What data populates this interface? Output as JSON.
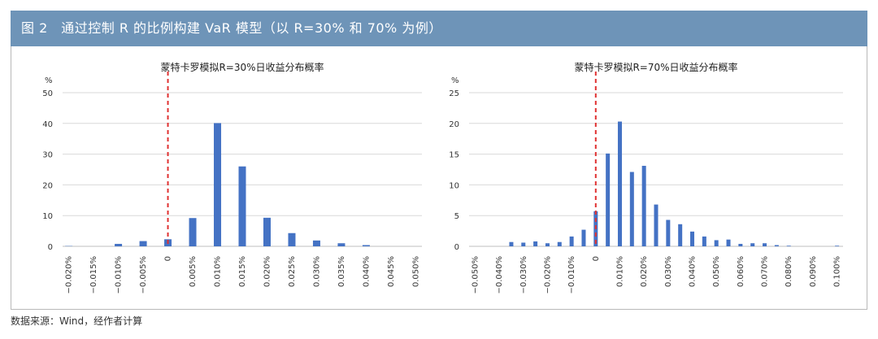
{
  "figure": {
    "title": "图 2　通过控制 R 的比例构建 VaR 模型（以 R=30% 和 70% 为例）",
    "source": "数据来源：Wind，经作者计算"
  },
  "colors": {
    "banner": "#6e94b8",
    "bar": "#4472c4",
    "zero_line": "#e03131",
    "grid": "#d9d9d9"
  },
  "chart_data": [
    {
      "type": "bar",
      "title": "蒙特卡罗模拟R=30%日收益分布概率",
      "ylabel": "%",
      "ylim": [
        0,
        50
      ],
      "yticks": [
        "0",
        "10",
        "20",
        "30",
        "40",
        "50"
      ],
      "grid": true,
      "zero_marker": {
        "style": "dashed",
        "at": "0"
      },
      "categories": [
        "-0.020%",
        "",
        "-0.015%",
        "",
        "-0.010%",
        "",
        "-0.005%",
        "",
        "0",
        "",
        "0.005%",
        "",
        "0.010%",
        "",
        "0.015%",
        "",
        "0.020%",
        "",
        "0.025%",
        "",
        "0.030%",
        "",
        "0.035%",
        "",
        "0.040%",
        "",
        "0.045%",
        "",
        "0.050%"
      ],
      "tick_labels": [
        "−0.020%",
        "−0.015%",
        "−0.010%",
        "−0.005%",
        "0",
        "0.005%",
        "0.010%",
        "0.015%",
        "0.020%",
        "0.025%",
        "0.030%",
        "0.035%",
        "0.040%",
        "0.045%",
        "0.050%"
      ],
      "values": [
        0.1,
        0,
        0,
        0,
        0.8,
        0,
        1.7,
        0,
        2.3,
        0,
        9.2,
        0,
        40.1,
        0,
        26.0,
        0,
        9.3,
        0,
        4.3,
        0,
        1.9,
        0,
        1.0,
        0,
        0.4,
        0,
        0,
        0,
        0
      ]
    },
    {
      "type": "bar",
      "title": "蒙特卡罗模拟R=70%日收益分布概率",
      "ylabel": "%",
      "ylim": [
        0,
        25
      ],
      "yticks": [
        "0",
        "5",
        "10",
        "15",
        "20",
        "25"
      ],
      "grid": true,
      "zero_marker": {
        "style": "dashed",
        "at": "0"
      },
      "tick_labels": [
        "−0.050%",
        "−0.040%",
        "−0.030%",
        "−0.020%",
        "−0.010%",
        "0",
        "0.010%",
        "0.020%",
        "0.030%",
        "0.040%",
        "0.050%",
        "0.060%",
        "0.070%",
        "0.080%",
        "0.090%",
        "0.100%"
      ],
      "values": [
        0,
        0,
        0,
        0.7,
        0.6,
        0.8,
        0.5,
        0.7,
        1.6,
        2.7,
        5.7,
        15.1,
        20.3,
        12.1,
        13.1,
        6.8,
        4.3,
        3.6,
        2.4,
        1.6,
        1.0,
        1.1,
        0.4,
        0.5,
        0.5,
        0.2,
        0.1,
        0,
        0,
        0,
        0.1
      ]
    }
  ]
}
